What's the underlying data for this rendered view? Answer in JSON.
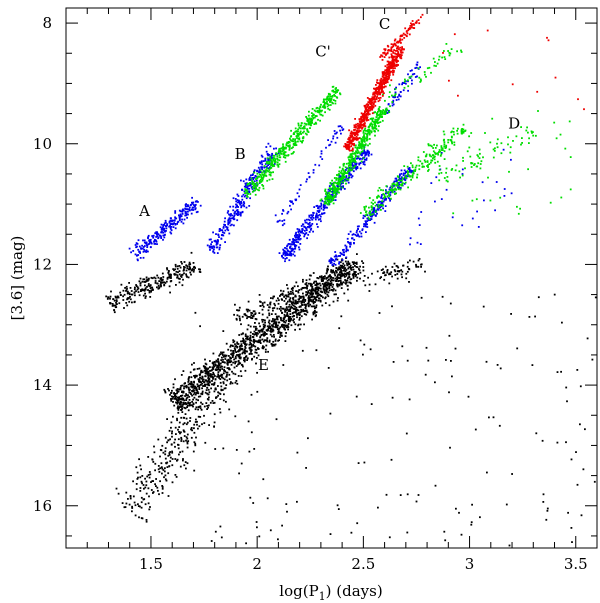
{
  "chart_data": {
    "type": "scatter",
    "title": "",
    "xlabel_main": "log(P",
    "xlabel_sub": "1",
    "xlabel_tail": ") (days)",
    "ylabel": "[3.6] (mag)",
    "xlim": [
      1.1,
      3.6
    ],
    "ylim": [
      16.7,
      7.75
    ],
    "y_inverted": true,
    "x_ticks": [
      1.5,
      2,
      2.5,
      3,
      3.5
    ],
    "x_tick_labels": [
      "1.5",
      "2",
      "2.5",
      "3",
      "3.5"
    ],
    "y_ticks": [
      8,
      10,
      12,
      14,
      16
    ],
    "y_tick_labels": [
      "8",
      "10",
      "12",
      "14",
      "16"
    ],
    "x_minor_step": 0.1,
    "y_minor_step": 0.5,
    "grid": false,
    "sequence_labels": [
      {
        "text": "A",
        "x": 1.47,
        "y": 11.2
      },
      {
        "text": "B",
        "x": 1.92,
        "y": 10.25
      },
      {
        "text": "C'",
        "x": 2.31,
        "y": 8.55
      },
      {
        "text": "C",
        "x": 2.6,
        "y": 8.1
      },
      {
        "text": "D",
        "x": 3.21,
        "y": 9.75
      },
      {
        "text": "E",
        "x": 2.03,
        "y": 13.75
      }
    ],
    "series": [
      {
        "color": "#000000",
        "regions": [
          {
            "x0": 1.3,
            "y0": 12.65,
            "x1": 1.72,
            "y1": 12.0,
            "width": 0.35,
            "count": 260
          },
          {
            "x0": 1.6,
            "y0": 14.3,
            "x1": 2.45,
            "y1": 12.05,
            "width": 0.5,
            "count": 1300
          },
          {
            "x0": 1.9,
            "y0": 12.9,
            "x1": 2.5,
            "y1": 12.0,
            "width": 0.35,
            "count": 220
          },
          {
            "x0": 1.4,
            "y0": 16.1,
            "x1": 1.85,
            "y1": 13.8,
            "width": 0.7,
            "count": 320
          },
          {
            "x0": 2.5,
            "y0": 12.3,
            "x1": 2.78,
            "y1": 12.0,
            "width": 0.35,
            "count": 70
          }
        ],
        "sparse": {
          "x": [
            1.7,
            3.6
          ],
          "y": [
            12.5,
            16.7
          ],
          "count": 170
        }
      },
      {
        "color": "#0000ee",
        "regions": [
          {
            "x0": 1.42,
            "y0": 11.85,
            "x1": 1.72,
            "y1": 10.95,
            "width": 0.25,
            "count": 230
          },
          {
            "x0": 1.78,
            "y0": 11.8,
            "x1": 2.08,
            "y1": 10.05,
            "width": 0.25,
            "count": 280
          },
          {
            "x0": 2.12,
            "y0": 11.9,
            "x1": 2.52,
            "y1": 10.1,
            "width": 0.22,
            "count": 420
          },
          {
            "x0": 2.35,
            "y0": 12.0,
            "x1": 2.72,
            "y1": 10.4,
            "width": 0.2,
            "count": 260
          },
          {
            "x0": 2.1,
            "y0": 11.3,
            "x1": 2.4,
            "y1": 9.7,
            "width": 0.2,
            "count": 60
          },
          {
            "x0": 2.6,
            "y0": 9.5,
            "x1": 2.78,
            "y1": 8.6,
            "width": 0.2,
            "count": 60
          }
        ],
        "sparse": {
          "x": [
            2.7,
            3.2
          ],
          "y": [
            10.0,
            11.8
          ],
          "count": 30
        }
      },
      {
        "color": "#00dd00",
        "regions": [
          {
            "x0": 1.95,
            "y0": 10.85,
            "x1": 2.38,
            "y1": 9.1,
            "width": 0.25,
            "count": 420
          },
          {
            "x0": 2.32,
            "y0": 11.0,
            "x1": 2.6,
            "y1": 9.4,
            "width": 0.22,
            "count": 420
          },
          {
            "x0": 2.5,
            "y0": 11.2,
            "x1": 2.98,
            "y1": 9.7,
            "width": 0.3,
            "count": 240
          },
          {
            "x0": 2.85,
            "y0": 10.6,
            "x1": 3.3,
            "y1": 9.8,
            "width": 0.4,
            "count": 70
          },
          {
            "x0": 2.6,
            "y0": 9.3,
            "x1": 2.95,
            "y1": 8.4,
            "width": 0.3,
            "count": 50
          }
        ],
        "sparse": {
          "x": [
            2.9,
            3.5
          ],
          "y": [
            9.4,
            11.2
          ],
          "count": 25
        }
      },
      {
        "color": "#ee0000",
        "regions": [
          {
            "x0": 2.42,
            "y0": 10.1,
            "x1": 2.68,
            "y1": 8.4,
            "width": 0.17,
            "count": 620
          },
          {
            "x0": 2.58,
            "y0": 8.6,
            "x1": 2.76,
            "y1": 7.95,
            "width": 0.12,
            "count": 90
          }
        ],
        "sparse": {
          "x": [
            2.75,
            3.55
          ],
          "y": [
            7.8,
            9.6
          ],
          "count": 14
        }
      }
    ]
  }
}
